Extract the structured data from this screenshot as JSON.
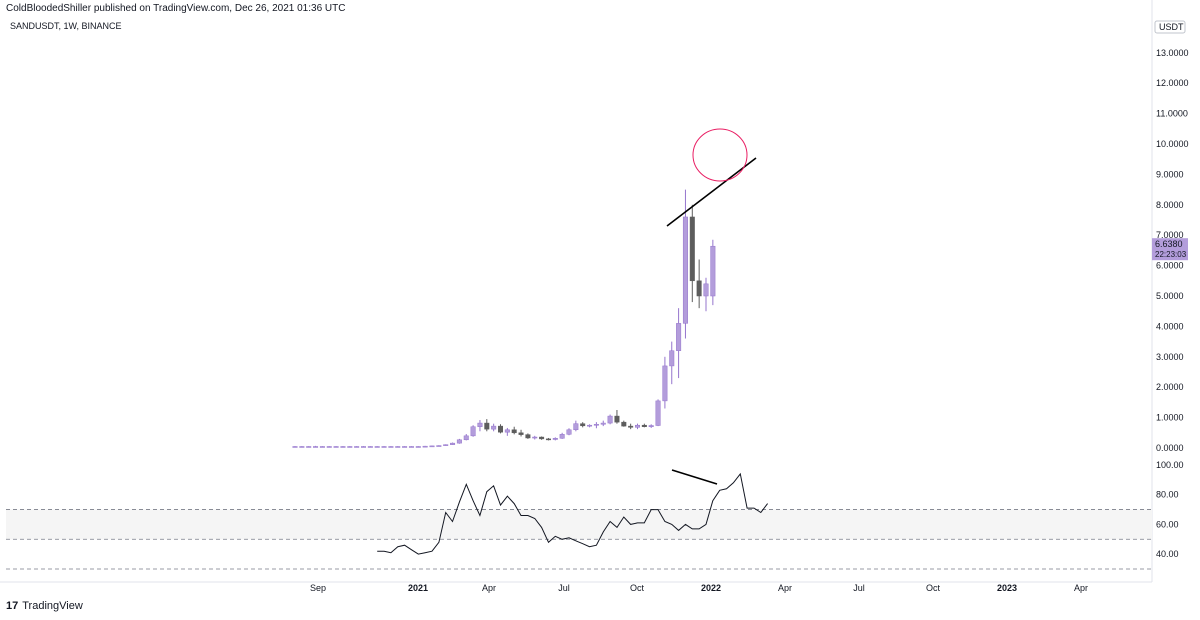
{
  "header": {
    "published_line": "ColdBloodedShiller published on TradingView.com, Dec 26, 2021 01:36 UTC",
    "symbol_line": "SANDUSDT, 1W, BINANCE"
  },
  "footer": {
    "logo_icon": "tradingview-logo-icon",
    "brand": "TradingView"
  },
  "colors": {
    "bull": "#b39ddb",
    "bull_border": "#9575cd",
    "bear": "#5d5d5d",
    "rsi_band": "#f5f5f5",
    "annotation_circle": "#e91e63",
    "annotation_line": "#000000"
  },
  "chart_data": [
    {
      "type": "candlestick",
      "title": "SANDUSDT, 1W, BINANCE",
      "unit_label": "USDT",
      "ylim": [
        0,
        14
      ],
      "yticks": [
        "0.0000",
        "1.0000",
        "2.0000",
        "3.0000",
        "4.0000",
        "5.0000",
        "6.0000",
        "7.0000",
        "8.0000",
        "9.0000",
        "10.0000",
        "11.0000",
        "12.0000",
        "13.0000"
      ],
      "last_price_label": "6.6380",
      "countdown_label": "22:23:03",
      "last_price": 6.638,
      "x_axis_labels": [
        "Sep",
        "2021",
        "Apr",
        "Jul",
        "Oct",
        "2022",
        "Apr",
        "Jul",
        "Oct",
        "2023",
        "Apr"
      ],
      "candles": [
        {
          "o": 0.05,
          "h": 0.06,
          "l": 0.04,
          "c": 0.05
        },
        {
          "o": 0.05,
          "h": 0.06,
          "l": 0.04,
          "c": 0.05
        },
        {
          "o": 0.05,
          "h": 0.06,
          "l": 0.04,
          "c": 0.05
        },
        {
          "o": 0.05,
          "h": 0.07,
          "l": 0.04,
          "c": 0.05
        },
        {
          "o": 0.05,
          "h": 0.06,
          "l": 0.04,
          "c": 0.05
        },
        {
          "o": 0.05,
          "h": 0.06,
          "l": 0.04,
          "c": 0.05
        },
        {
          "o": 0.05,
          "h": 0.06,
          "l": 0.04,
          "c": 0.05
        },
        {
          "o": 0.05,
          "h": 0.06,
          "l": 0.04,
          "c": 0.05
        },
        {
          "o": 0.05,
          "h": 0.06,
          "l": 0.04,
          "c": 0.05
        },
        {
          "o": 0.05,
          "h": 0.06,
          "l": 0.04,
          "c": 0.05
        },
        {
          "o": 0.05,
          "h": 0.06,
          "l": 0.04,
          "c": 0.05
        },
        {
          "o": 0.05,
          "h": 0.06,
          "l": 0.04,
          "c": 0.05
        },
        {
          "o": 0.05,
          "h": 0.06,
          "l": 0.04,
          "c": 0.05
        },
        {
          "o": 0.05,
          "h": 0.06,
          "l": 0.04,
          "c": 0.05
        },
        {
          "o": 0.05,
          "h": 0.06,
          "l": 0.04,
          "c": 0.05
        },
        {
          "o": 0.05,
          "h": 0.06,
          "l": 0.04,
          "c": 0.05
        },
        {
          "o": 0.05,
          "h": 0.06,
          "l": 0.04,
          "c": 0.05
        },
        {
          "o": 0.05,
          "h": 0.06,
          "l": 0.04,
          "c": 0.05
        },
        {
          "o": 0.05,
          "h": 0.06,
          "l": 0.04,
          "c": 0.05
        },
        {
          "o": 0.05,
          "h": 0.07,
          "l": 0.04,
          "c": 0.06
        },
        {
          "o": 0.06,
          "h": 0.08,
          "l": 0.05,
          "c": 0.07
        },
        {
          "o": 0.07,
          "h": 0.09,
          "l": 0.06,
          "c": 0.08
        },
        {
          "o": 0.08,
          "h": 0.12,
          "l": 0.07,
          "c": 0.11
        },
        {
          "o": 0.11,
          "h": 0.18,
          "l": 0.1,
          "c": 0.16
        },
        {
          "o": 0.16,
          "h": 0.3,
          "l": 0.14,
          "c": 0.27
        },
        {
          "o": 0.27,
          "h": 0.46,
          "l": 0.25,
          "c": 0.4
        },
        {
          "o": 0.4,
          "h": 0.75,
          "l": 0.37,
          "c": 0.7
        },
        {
          "o": 0.7,
          "h": 0.92,
          "l": 0.55,
          "c": 0.82
        },
        {
          "o": 0.82,
          "h": 0.95,
          "l": 0.55,
          "c": 0.62
        },
        {
          "o": 0.62,
          "h": 0.8,
          "l": 0.55,
          "c": 0.72
        },
        {
          "o": 0.72,
          "h": 0.78,
          "l": 0.48,
          "c": 0.52
        },
        {
          "o": 0.52,
          "h": 0.66,
          "l": 0.4,
          "c": 0.6
        },
        {
          "o": 0.6,
          "h": 0.7,
          "l": 0.45,
          "c": 0.5
        },
        {
          "o": 0.5,
          "h": 0.6,
          "l": 0.38,
          "c": 0.44
        },
        {
          "o": 0.44,
          "h": 0.48,
          "l": 0.3,
          "c": 0.33
        },
        {
          "o": 0.33,
          "h": 0.4,
          "l": 0.28,
          "c": 0.36
        },
        {
          "o": 0.36,
          "h": 0.38,
          "l": 0.27,
          "c": 0.3
        },
        {
          "o": 0.3,
          "h": 0.33,
          "l": 0.25,
          "c": 0.28
        },
        {
          "o": 0.28,
          "h": 0.35,
          "l": 0.25,
          "c": 0.32
        },
        {
          "o": 0.32,
          "h": 0.5,
          "l": 0.3,
          "c": 0.45
        },
        {
          "o": 0.45,
          "h": 0.65,
          "l": 0.42,
          "c": 0.6
        },
        {
          "o": 0.6,
          "h": 0.9,
          "l": 0.55,
          "c": 0.8
        },
        {
          "o": 0.8,
          "h": 0.85,
          "l": 0.68,
          "c": 0.73
        },
        {
          "o": 0.73,
          "h": 0.78,
          "l": 0.68,
          "c": 0.75
        },
        {
          "o": 0.75,
          "h": 0.85,
          "l": 0.65,
          "c": 0.78
        },
        {
          "o": 0.78,
          "h": 0.9,
          "l": 0.72,
          "c": 0.82
        },
        {
          "o": 0.82,
          "h": 1.1,
          "l": 0.78,
          "c": 1.05
        },
        {
          "o": 1.05,
          "h": 1.25,
          "l": 0.8,
          "c": 0.85
        },
        {
          "o": 0.85,
          "h": 0.9,
          "l": 0.7,
          "c": 0.72
        },
        {
          "o": 0.72,
          "h": 0.8,
          "l": 0.62,
          "c": 0.68
        },
        {
          "o": 0.68,
          "h": 0.8,
          "l": 0.62,
          "c": 0.75
        },
        {
          "o": 0.75,
          "h": 0.8,
          "l": 0.68,
          "c": 0.7
        },
        {
          "o": 0.7,
          "h": 0.78,
          "l": 0.66,
          "c": 0.74
        },
        {
          "o": 0.74,
          "h": 1.6,
          "l": 0.72,
          "c": 1.55
        },
        {
          "o": 1.55,
          "h": 3.0,
          "l": 1.3,
          "c": 2.7
        },
        {
          "o": 2.7,
          "h": 3.5,
          "l": 2.1,
          "c": 3.2
        },
        {
          "o": 3.2,
          "h": 4.6,
          "l": 2.3,
          "c": 4.1
        },
        {
          "o": 4.1,
          "h": 8.5,
          "l": 3.6,
          "c": 7.6
        },
        {
          "o": 7.6,
          "h": 8.0,
          "l": 4.8,
          "c": 5.5
        },
        {
          "o": 5.5,
          "h": 6.2,
          "l": 4.6,
          "c": 5.0
        },
        {
          "o": 5.0,
          "h": 5.6,
          "l": 4.5,
          "c": 5.4
        },
        {
          "o": 5.0,
          "h": 6.85,
          "l": 4.7,
          "c": 6.638
        }
      ]
    },
    {
      "type": "line",
      "title": "",
      "ylim": [
        30,
        100
      ],
      "yticks": [
        "40.00",
        "60.00",
        "80.00",
        "100.00"
      ],
      "bands": [
        30,
        50,
        70
      ],
      "values": [
        42,
        42,
        41,
        45,
        46,
        43,
        40,
        41,
        42,
        48,
        68,
        62,
        75,
        87,
        76,
        66,
        82,
        86,
        73,
        79,
        74,
        66,
        66,
        64,
        58,
        48,
        52,
        50,
        51,
        49,
        47,
        45,
        46,
        55,
        62,
        58,
        65,
        60,
        61,
        61,
        70,
        70,
        62,
        60,
        56,
        60,
        57,
        57,
        60,
        76,
        83,
        84,
        88,
        94,
        71,
        71,
        68,
        74
      ]
    }
  ]
}
